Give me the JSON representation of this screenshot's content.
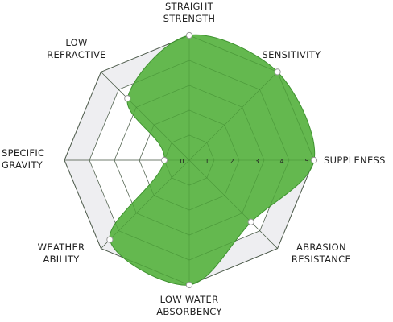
{
  "chart_data": {
    "type": "radar",
    "title": "",
    "axes": [
      [
        "STRAIGHT",
        "STRENGTH"
      ],
      [
        "SENSITIVITY"
      ],
      [
        "SUPPLENESS"
      ],
      [
        "ABRASION",
        "RESISTANCE"
      ],
      [
        "LOW WATER",
        "ABSORBENCY"
      ],
      [
        "WEATHER",
        "ABILITY"
      ],
      [
        "SPECIFIC",
        "GRAVITY"
      ],
      [
        "LOW",
        "REFRACTIVE"
      ]
    ],
    "ticks": [
      "0",
      "1",
      "2",
      "3",
      "4",
      "5"
    ],
    "range": [
      0,
      5
    ],
    "values": [
      5,
      5,
      5,
      3.5,
      5,
      4.5,
      1,
      3.5
    ],
    "grid": true,
    "colors": {
      "fill": "#5cb446",
      "stroke": "#3f9330",
      "grid": "#555555",
      "background_band": "#eeeef1",
      "marker_fill": "#ffffff",
      "marker_stroke": "#999999"
    }
  }
}
